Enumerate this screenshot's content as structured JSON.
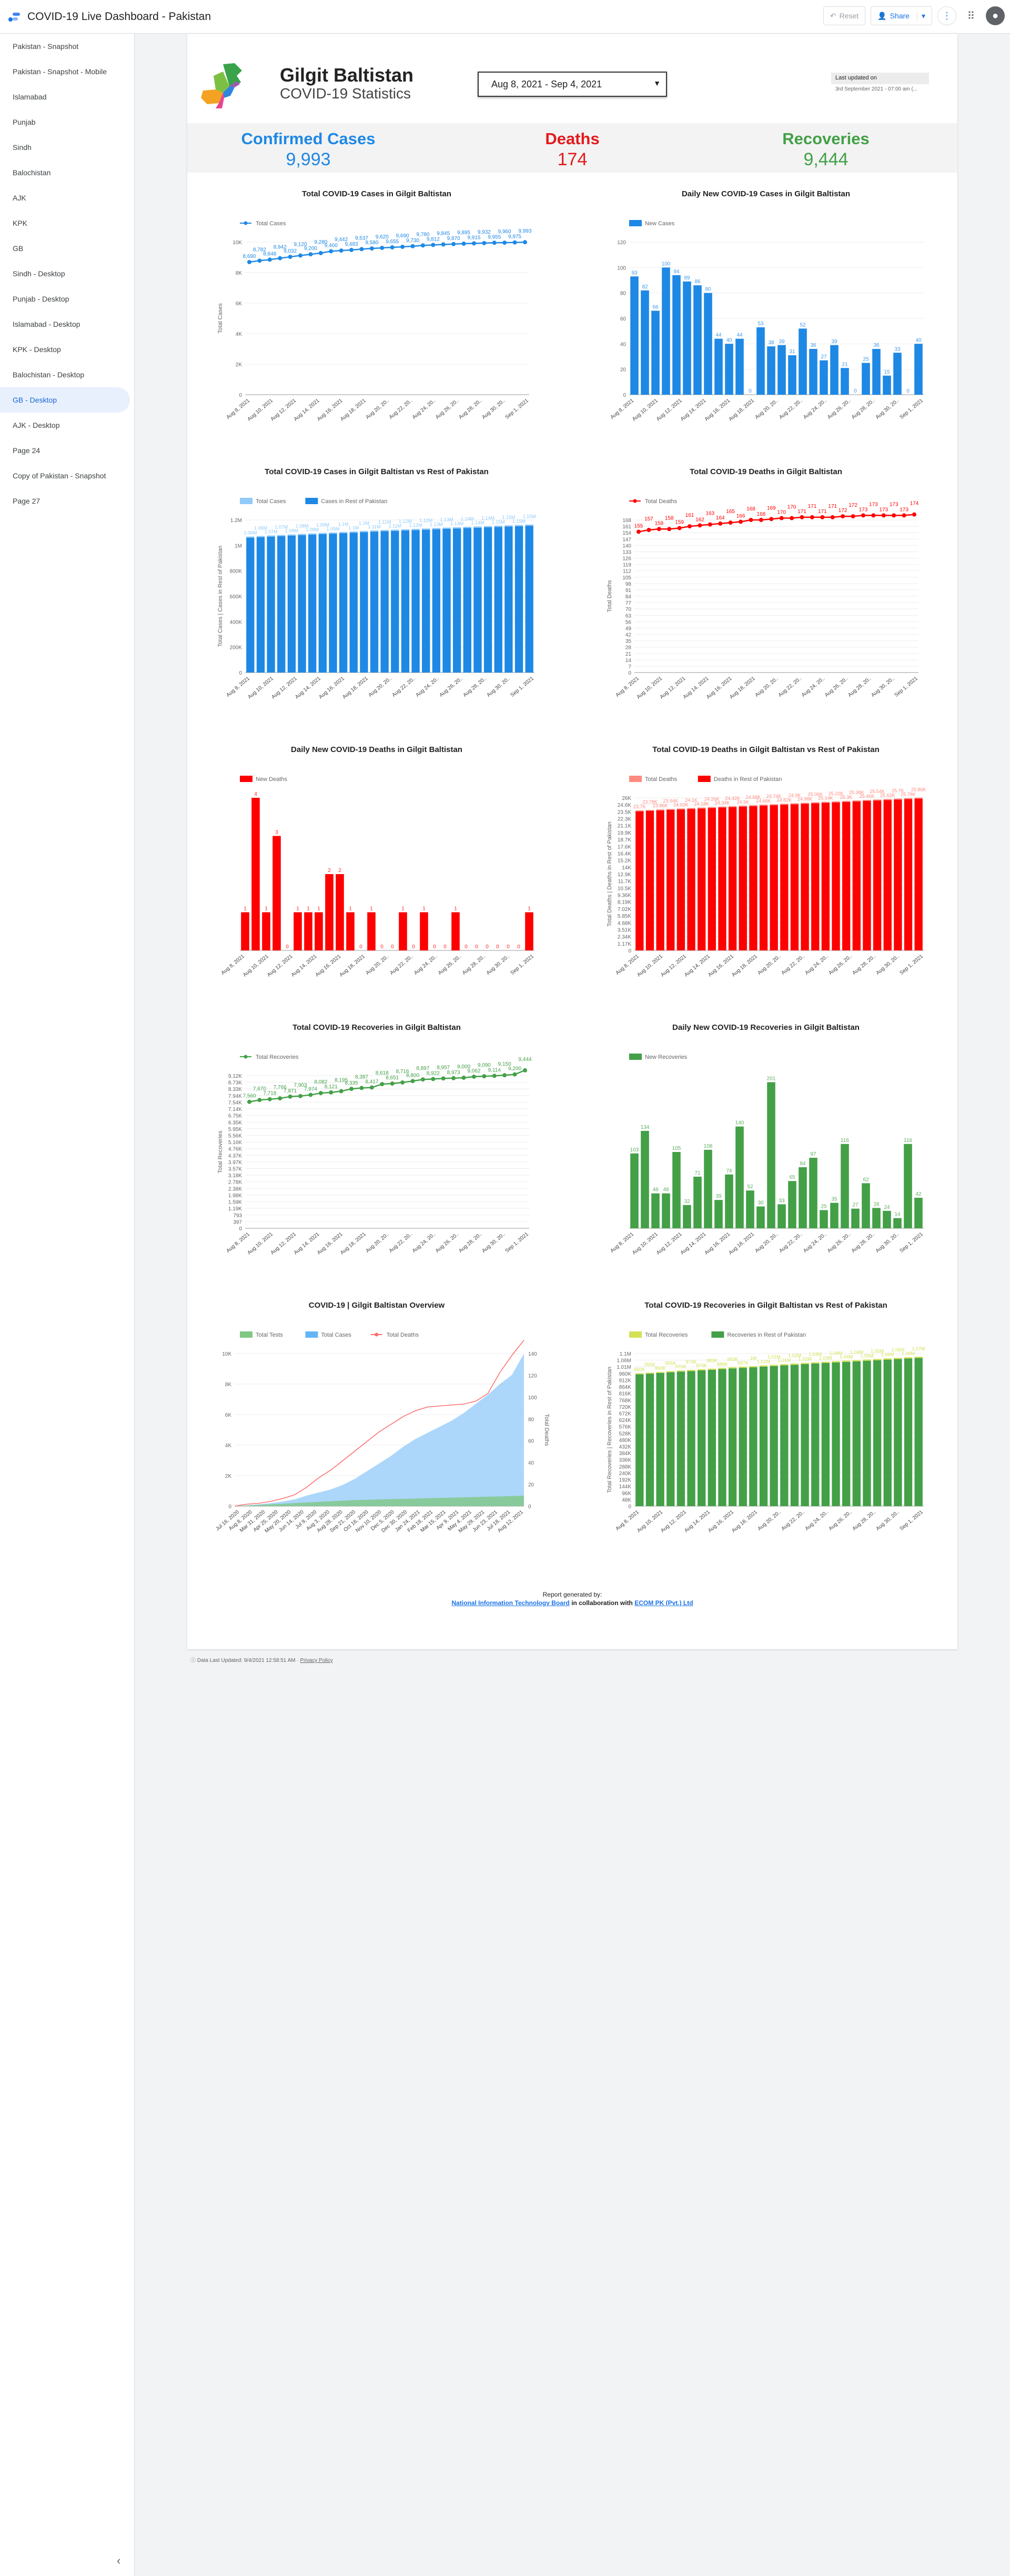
{
  "app": {
    "title": "COVID-19 Live Dashboard - Pakistan",
    "reset_label": "Reset",
    "share_label": "Share"
  },
  "sidebar": {
    "items": [
      {
        "label": "Pakistan - Snapshot"
      },
      {
        "label": "Pakistan - Snapshot - Mobile"
      },
      {
        "label": "Islamabad"
      },
      {
        "label": "Punjab"
      },
      {
        "label": "Sindh"
      },
      {
        "label": "Balochistan"
      },
      {
        "label": "AJK"
      },
      {
        "label": "KPK"
      },
      {
        "label": "GB"
      },
      {
        "label": "Sindh - Desktop"
      },
      {
        "label": "Punjab - Desktop"
      },
      {
        "label": "Islamabad - Desktop"
      },
      {
        "label": "KPK - Desktop"
      },
      {
        "label": "Balochistan - Desktop"
      },
      {
        "label": "GB - Desktop",
        "active": true
      },
      {
        "label": "AJK - Desktop"
      },
      {
        "label": "Page 24"
      },
      {
        "label": "Copy of Pakistan - Snapshot"
      },
      {
        "label": "Page 27"
      }
    ]
  },
  "header": {
    "region": "Gilgit Baltistan",
    "subtitle": "COVID-19 Statistics",
    "date_range": "Aug 8, 2021 - Sep 4, 2021",
    "updated_label": "Last updated on",
    "updated_value": "3rd September 2021 - 07:00 am (..."
  },
  "kpis": {
    "confirmed": {
      "label": "Confirmed Cases",
      "value": "9,993",
      "color": "#1e88e5"
    },
    "deaths": {
      "label": "Deaths",
      "value": "174",
      "color": "#e31a1c"
    },
    "recoveries": {
      "label": "Recoveries",
      "value": "9,444",
      "color": "#43a047"
    }
  },
  "colors": {
    "blue": "#1e88e5",
    "red": "#ff0000",
    "green": "#43a047",
    "lightblue": "#90caf9",
    "lightgreen": "#81c784"
  },
  "dates": [
    "Aug 8, 2021",
    "Aug 9, 2021",
    "Aug 10, 2021",
    "Aug 11, 2021",
    "Aug 12, 2021",
    "Aug 13, 2021",
    "Aug 14, 2021",
    "Aug 15, 2021",
    "Aug 16, 2021",
    "Aug 17, 2021",
    "Aug 18, 2021",
    "Aug 19, 2021",
    "Aug 20, 2021",
    "Aug 21, 2021",
    "Aug 22, 2021",
    "Aug 23, 2021",
    "Aug 24, 2021",
    "Aug 25, 2021",
    "Aug 26, 2021",
    "Aug 27, 2021",
    "Aug 28, 2021",
    "Aug 29, 2021",
    "Aug 30, 2021",
    "Aug 31, 2021",
    "Sep 1, 2021",
    "Sep 2, 2021",
    "Sep 3, 2021",
    "Sep 4, 2021"
  ],
  "date_ticks": [
    "Aug 8, 2021",
    "Aug 10, 2021",
    "Aug 12, 2021",
    "Aug 14, 2021",
    "Aug 16, 2021",
    "Aug 18, 2021",
    "Aug 20, 20..",
    "Aug 22, 20..",
    "Aug 24, 20..",
    "Aug 26, 20..",
    "Aug 28, 20..",
    "Aug 30, 20..",
    "Sep 1, 2021"
  ],
  "chart_data": [
    {
      "id": "c1",
      "type": "line",
      "title": "Total COVID-19 Cases in Gilgit Baltistan",
      "legend": [
        "Total Cases"
      ],
      "ylabel": "Total Cases",
      "ylim": [
        0,
        10000
      ],
      "yticks": [
        "10K",
        "8K",
        "6K",
        "4K",
        "2K",
        "0"
      ],
      "series": [
        {
          "name": "Total Cases",
          "values": [
            8690,
            8782,
            8848,
            8942,
            9032,
            9120,
            9200,
            9280,
            9400,
            9442,
            9483,
            9537,
            9580,
            9620,
            9655,
            9690,
            9730,
            9780,
            9812,
            9845,
            9870,
            9895,
            9915,
            9932,
            9955,
            9960,
            9975,
            9993
          ]
        }
      ]
    },
    {
      "id": "c2",
      "type": "bar",
      "title": "Daily New COVID-19 Cases in Gilgit Baltistan",
      "legend": [
        "New Cases"
      ],
      "ylim": [
        0,
        120
      ],
      "yticks": [
        "120",
        "100",
        "80",
        "60",
        "40",
        "20",
        "0"
      ],
      "series": [
        {
          "name": "New Cases",
          "values": [
            93,
            82,
            66,
            100,
            94,
            89,
            86,
            80,
            44,
            40,
            44,
            0,
            53,
            38,
            39,
            31,
            52,
            36,
            27,
            39,
            21,
            0,
            25,
            36,
            15,
            33,
            0,
            40
          ]
        }
      ]
    },
    {
      "id": "c3",
      "type": "bar",
      "title": "Total COVID-19 Cases in Gilgit Baltistan vs Rest of Pakistan",
      "legend": [
        "Total Cases",
        "Cases in Rest of Pakistan"
      ],
      "ylabel": "Total Cases | Cases in Rest of Pakistan",
      "ylim": [
        0,
        1200000
      ],
      "yticks": [
        "1.2M",
        "1M",
        "800K",
        "600K",
        "400K",
        "200K",
        "0"
      ],
      "series": [
        {
          "name": "Total Cases",
          "values": [
            8690,
            8782,
            8848,
            8942,
            9032,
            9120,
            9200,
            9280,
            9400,
            9442,
            9483,
            9537,
            9580,
            9620,
            9655,
            9690,
            9730,
            9780,
            9812,
            9845,
            9870,
            9895,
            9915,
            9932,
            9955,
            9960,
            9975,
            9993
          ]
        },
        {
          "name": "Cases in Rest of Pakistan",
          "values": [
            1061000,
            1065000,
            1069000,
            1073000,
            1077000,
            1081000,
            1085000,
            1089000,
            1092000,
            1096000,
            1100000,
            1104000,
            1108000,
            1111000,
            1114000,
            1117000,
            1120000,
            1123000,
            1127000,
            1130000,
            1133000,
            1136000,
            1139000,
            1142000,
            1145000,
            1148000,
            1151000,
            1154000
          ]
        }
      ]
    },
    {
      "id": "c4",
      "type": "line",
      "title": "Total COVID-19 Deaths in Gilgit Baltistan",
      "legend": [
        "Total Deaths"
      ],
      "ylabel": "Total Deaths",
      "ylim": [
        0,
        168
      ],
      "yticks": [
        "168",
        "161",
        "154",
        "147",
        "140",
        "133",
        "126",
        "119",
        "112",
        "105",
        "98",
        "91",
        "84",
        "77",
        "70",
        "63",
        "56",
        "49",
        "42",
        "35",
        "28",
        "21",
        "14",
        "7",
        "0"
      ],
      "series": [
        {
          "name": "Total Deaths",
          "values": [
            155,
            157,
            158,
            158,
            159,
            161,
            162,
            163,
            164,
            165,
            166,
            168,
            168,
            169,
            170,
            170,
            171,
            171,
            171,
            171,
            172,
            172,
            173,
            173,
            173,
            173,
            173,
            174
          ]
        }
      ]
    },
    {
      "id": "c5",
      "type": "bar",
      "title": "Daily New COVID-19 Deaths in Gilgit Baltistan",
      "legend": [
        "New Deaths"
      ],
      "ylim": [
        0,
        4
      ],
      "series": [
        {
          "name": "New Deaths",
          "values": [
            1,
            4,
            1,
            3,
            0,
            1,
            1,
            1,
            2,
            2,
            1,
            0,
            1,
            0,
            0,
            1,
            0,
            1,
            0,
            0,
            1,
            0,
            0,
            0,
            0,
            0,
            0,
            1
          ]
        }
      ]
    },
    {
      "id": "c6",
      "type": "bar",
      "title": "Total COVID-19 Deaths in Gilgit Baltistan vs Rest of Pakistan",
      "legend": [
        "Total Deaths",
        "Deaths in Rest of Pakistan"
      ],
      "ylabel": "Total Deaths | Deaths in Rest of Pakistan",
      "ylim": [
        0,
        26000
      ],
      "yticks": [
        "26K",
        "24.6K",
        "23.5K",
        "22.3K",
        "21.1K",
        "19.9K",
        "18.7K",
        "17.6K",
        "16.4K",
        "15.2K",
        "14K",
        "12.9K",
        "11.7K",
        "10.5K",
        "9.36K",
        "8.19K",
        "7.02K",
        "5.85K",
        "4.68K",
        "3.51K",
        "2.34K",
        "1.17K",
        "0"
      ],
      "series": [
        {
          "name": "Total Deaths",
          "values": [
            155,
            157,
            158,
            158,
            159,
            161,
            162,
            163,
            164,
            165,
            166,
            168,
            168,
            169,
            170,
            170,
            171,
            171,
            171,
            171,
            172,
            172,
            173,
            173,
            173,
            173,
            173,
            174
          ]
        },
        {
          "name": "Deaths in Rest of Pakistan",
          "values": [
            23700,
            23780,
            23860,
            23940,
            24020,
            24100,
            24180,
            24260,
            24340,
            24420,
            24500,
            24580,
            24660,
            24740,
            24820,
            24900,
            24980,
            25060,
            25140,
            25220,
            25300,
            25380,
            25460,
            25540,
            25620,
            25700,
            25780,
            25860
          ]
        }
      ]
    },
    {
      "id": "c7",
      "type": "line",
      "title": "Total COVID-19 Recoveries in Gilgit Baltistan",
      "legend": [
        "Total Recoveries"
      ],
      "ylabel": "Total Recoveries",
      "ylim": [
        0,
        9124
      ],
      "yticks": [
        "9.12K",
        "8.73K",
        "8.33K",
        "7.94K",
        "7.54K",
        "7.14K",
        "6.75K",
        "6.35K",
        "5.95K",
        "5.56K",
        "5.16K",
        "4.76K",
        "4.37K",
        "3.97K",
        "3.57K",
        "3.18K",
        "2.78K",
        "2.38K",
        "1.98K",
        "1.59K",
        "1.19K",
        "793",
        "397",
        "0"
      ],
      "series": [
        {
          "name": "Total Recoveries",
          "values": [
            7560,
            7670,
            7718,
            7766,
            7871,
            7903,
            7974,
            8082,
            8121,
            8195,
            8335,
            8387,
            8417,
            8618,
            8651,
            8716,
            8800,
            8897,
            8922,
            8957,
            8973,
            9000,
            9062,
            9090,
            9114,
            9150,
            9200,
            9444
          ]
        }
      ]
    },
    {
      "id": "c8",
      "type": "bar",
      "title": "Daily New COVID-19 Recoveries in Gilgit Baltistan",
      "legend": [
        "New Recoveries"
      ],
      "ylim": [
        0,
        210
      ],
      "series": [
        {
          "name": "New Recoveries",
          "values": [
            103,
            134,
            48,
            48,
            105,
            32,
            71,
            108,
            39,
            74,
            140,
            52,
            30,
            201,
            33,
            65,
            84,
            97,
            25,
            35,
            116,
            27,
            62,
            28,
            24,
            14,
            116,
            42
          ]
        }
      ]
    },
    {
      "id": "c9",
      "type": "area",
      "title": "COVID-19  |  Gilgit Baltistan Overview",
      "legend": [
        "Total Tests",
        "Total Cases",
        "Total Deaths"
      ],
      "ylabel_right": "Total Deaths",
      "ylim": [
        0,
        10000
      ],
      "yticks": [
        "10K",
        "8K",
        "6K",
        "4K",
        "2K",
        "0"
      ],
      "y2ticks": [
        "140",
        "120",
        "100",
        "80",
        "60",
        "40",
        "20",
        "0"
      ],
      "xticks": [
        "Jul 16, 2020",
        "Aug 8, 2020",
        "Mar 31, 2020",
        "Apr 25, 2020",
        "May 20, 2020",
        "Jun 14, 2020",
        "Jul 9, 2020",
        "Aug 3, 2020",
        "Aug 28, 2020",
        "Sep 21, 2020",
        "Oct 16, 2020",
        "Nov 10, 2020",
        "Dec 5, 2020",
        "Dec 30, 2020",
        "Jan 24, 2021",
        "Feb 18, 2021",
        "Mar 15, 2021",
        "Apr 9, 2021",
        "May 4, 2021",
        "May 29, 2021",
        "Jun 23, 2021",
        "Jul 18, 2021",
        "Aug 12, 2021"
      ],
      "series": [
        {
          "name": "Total Cases",
          "values": [
            0,
            50,
            120,
            200,
            300,
            450,
            700,
            900,
            1100,
            1400,
            1800,
            2300,
            2800,
            3300,
            3900,
            4400,
            4800,
            5200,
            5600,
            6100,
            6700,
            7300,
            8000,
            8600,
            9993
          ]
        },
        {
          "name": "Total Deaths",
          "values": [
            0,
            2,
            3,
            5,
            8,
            12,
            20,
            30,
            38,
            48,
            58,
            68,
            78,
            86,
            94,
            100,
            104,
            105,
            106,
            107,
            110,
            118,
            140,
            158,
            174
          ]
        },
        {
          "name": "Total Tests",
          "values": [
            0,
            40,
            80,
            120,
            160,
            200,
            240,
            280,
            320,
            360,
            400,
            420,
            440,
            460,
            480,
            500,
            520,
            540,
            560,
            580,
            600,
            620,
            640,
            660,
            680
          ]
        }
      ]
    },
    {
      "id": "c10",
      "type": "bar",
      "title": "Total COVID-19 Recoveries in Gilgit Baltistan vs Rest of Pakistan",
      "legend": [
        "Total Recoveries",
        "Recoveries in Rest of Pakistan"
      ],
      "ylabel": "Total Recoveries | Recoveries in Rest of Pakistan",
      "ylim": [
        0,
        1100000
      ],
      "yticks": [
        "1.1M",
        "1.06M",
        "1.01M",
        "960K",
        "912K",
        "864K",
        "816K",
        "768K",
        "720K",
        "672K",
        "624K",
        "576K",
        "528K",
        "480K",
        "432K",
        "384K",
        "336K",
        "288K",
        "240K",
        "192K",
        "144K",
        "96K",
        "48K",
        "0"
      ],
      "series": [
        {
          "name": "Total Recoveries",
          "values": [
            7560,
            7670,
            7718,
            7766,
            7871,
            7903,
            7974,
            8082,
            8121,
            8195,
            8335,
            8387,
            8417,
            8618,
            8651,
            8716,
            8800,
            8897,
            8922,
            8957,
            8973,
            9000,
            9062,
            9090,
            9114,
            9150,
            9200,
            9444
          ]
        },
        {
          "name": "Recoveries in Rest of Pakistan",
          "values": [
            950000,
            955000,
            960000,
            965000,
            970000,
            974000,
            979000,
            983000,
            988000,
            993000,
            997000,
            1001000,
            1006000,
            1010000,
            1015000,
            1019000,
            1024000,
            1028000,
            1032000,
            1036000,
            1040000,
            1044000,
            1048000,
            1052000,
            1056000,
            1060000,
            1064000,
            1068000
          ]
        }
      ]
    }
  ],
  "footer": {
    "generated_by": "Report generated by:",
    "nitb": "National Information Technology Board",
    "collab": " in collaboration with ",
    "ecom": "ECOM PK (Pvt.) Ltd",
    "updated": "Data Last Updated: 9/4/2021 12:58:51 AM",
    "privacy": "Privacy Policy"
  }
}
